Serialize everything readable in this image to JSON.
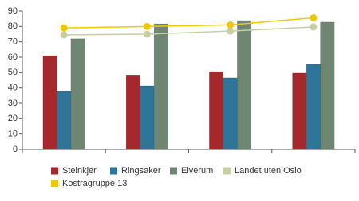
{
  "chart_data": {
    "type": "bar",
    "categories": [
      null,
      null,
      null,
      null
    ],
    "ylim": [
      0,
      90
    ],
    "yticks": [
      0,
      10,
      20,
      30,
      40,
      50,
      60,
      70,
      80,
      90
    ],
    "grid": false,
    "series": [
      {
        "name": "Steinkjer",
        "color": "#a4282c",
        "values": [
          61,
          48,
          50.7,
          49.7
        ]
      },
      {
        "name": "Ringsaker",
        "color": "#2f7597",
        "values": [
          37.8,
          41.4,
          46.6,
          55.4
        ]
      },
      {
        "name": "Elverum",
        "color": "#6f8672",
        "values": [
          72,
          81.7,
          83.8,
          82.8
        ]
      },
      {
        "name": "Landet uten Oslo",
        "type": "line",
        "color": "#c8cea4",
        "values": [
          74.5,
          75,
          77,
          79.7
        ]
      },
      {
        "name": "Kostragruppe 13",
        "type": "line",
        "color": "#eec900",
        "values": [
          79,
          80,
          81,
          85.6
        ]
      }
    ]
  }
}
